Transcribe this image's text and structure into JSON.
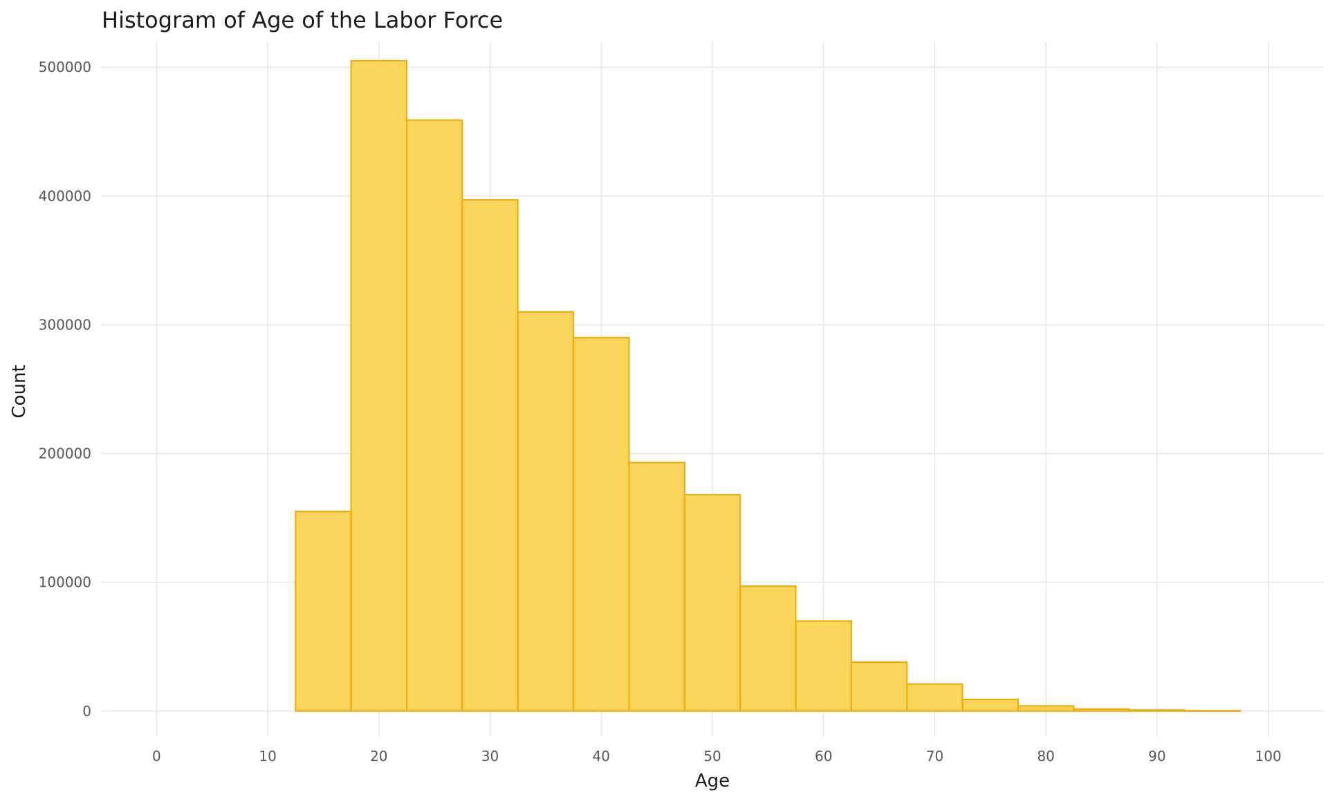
{
  "chart_data": {
    "type": "bar",
    "title": "Histogram of Age of the Labor Force",
    "xlabel": "Age",
    "ylabel": "Count",
    "bin_width": 5,
    "bin_centers": [
      5,
      10,
      15,
      20,
      25,
      30,
      35,
      40,
      45,
      50,
      55,
      60,
      65,
      70,
      75,
      80,
      85,
      90,
      95
    ],
    "values": [
      0,
      0,
      155000,
      505000,
      459000,
      397000,
      310000,
      290000,
      193000,
      168000,
      97000,
      70000,
      38000,
      21000,
      9000,
      4000,
      1500,
      800,
      300
    ],
    "xlim": [
      -5,
      105
    ],
    "ylim": [
      -20000,
      520000
    ],
    "x_ticks": [
      0,
      10,
      20,
      30,
      40,
      50,
      60,
      70,
      80,
      90,
      100
    ],
    "x_tick_labels": [
      "0",
      "10",
      "20",
      "30",
      "40",
      "50",
      "60",
      "70",
      "80",
      "90",
      "100"
    ],
    "y_ticks": [
      0,
      100000,
      200000,
      300000,
      400000,
      500000
    ],
    "y_tick_labels": [
      "0",
      "100000",
      "200000",
      "300000",
      "400000",
      "500000"
    ],
    "grid": true,
    "bar_fill": "#FAD55C",
    "bar_stroke": "#F7A800"
  }
}
